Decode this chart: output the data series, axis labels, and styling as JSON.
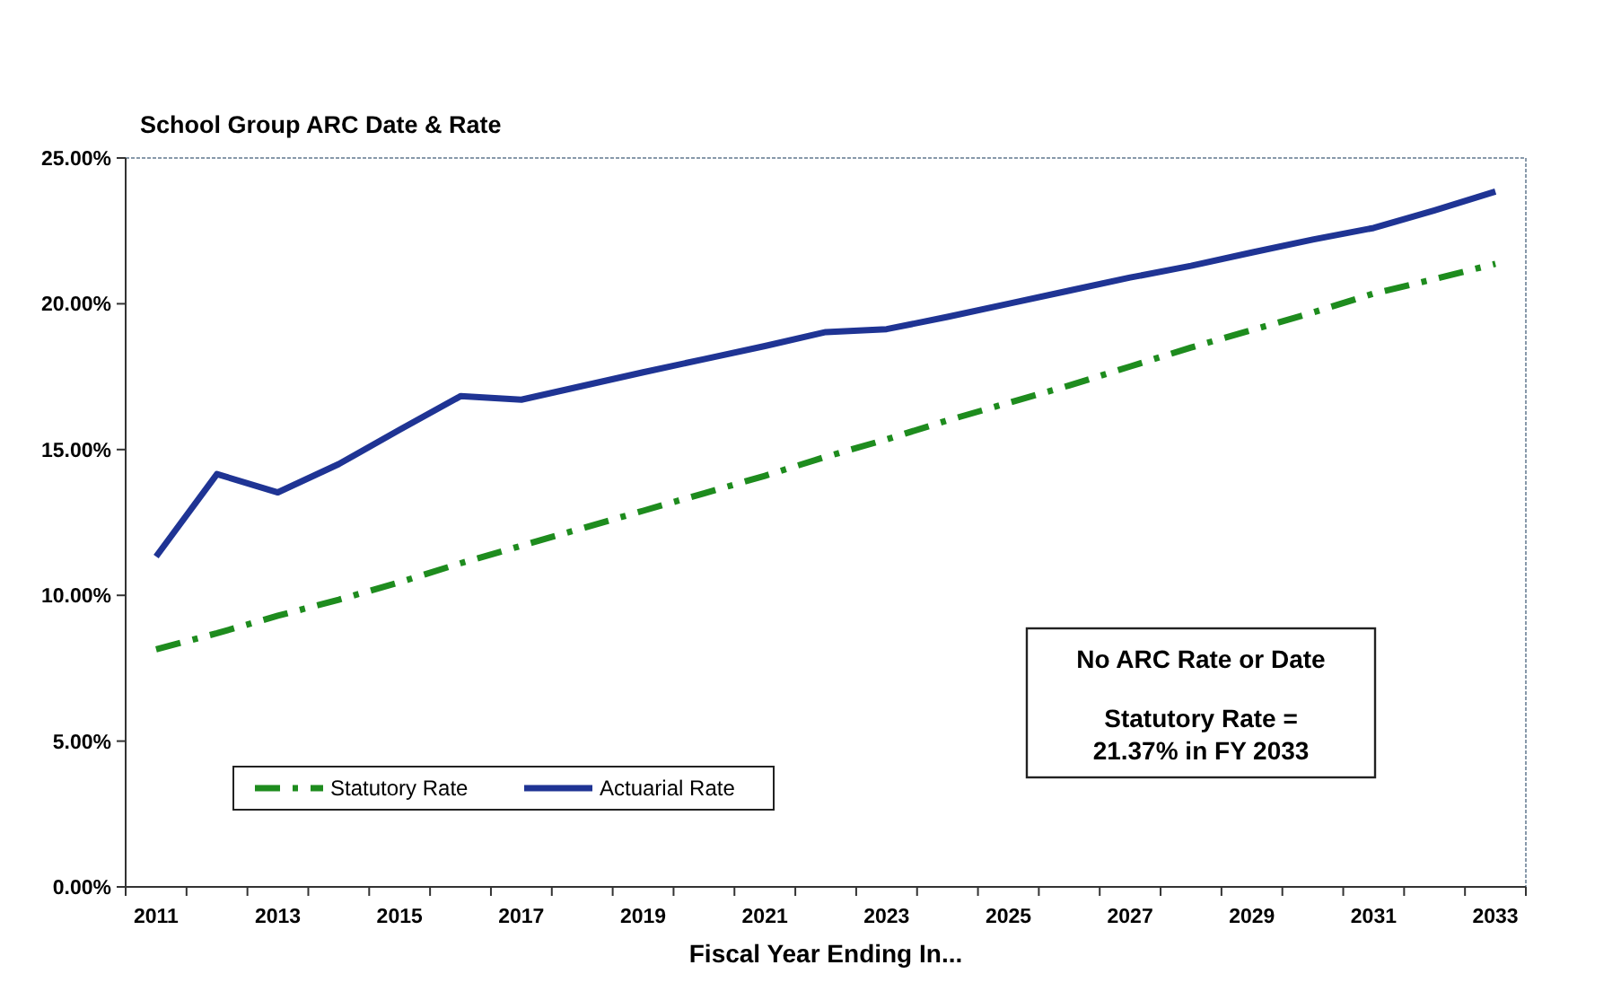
{
  "chart_data": {
    "type": "line",
    "title": "School Group ARC Date & Rate",
    "xlabel": "Fiscal Year Ending In...",
    "categories": [
      "2011",
      null,
      "2013",
      null,
      "2015",
      null,
      "2017",
      null,
      "2019",
      null,
      "2021",
      null,
      "2023",
      null,
      "2025",
      null,
      "2027",
      null,
      "2029",
      null,
      "2031",
      null,
      "2033"
    ],
    "series": [
      {
        "name": "Statutory Rate",
        "color": "#1e8c1e",
        "line_style": "dashed",
        "values": [
          8.15,
          8.7,
          9.3,
          9.85,
          10.45,
          11.1,
          11.7,
          12.3,
          12.9,
          13.5,
          14.1,
          14.75,
          15.35,
          16.0,
          16.6,
          17.2,
          17.85,
          18.5,
          19.1,
          19.7,
          20.35,
          20.85,
          21.37
        ]
      },
      {
        "name": "Actuarial Rate",
        "color": "#1f3494",
        "line_style": "solid",
        "values": [
          11.33,
          14.16,
          13.53,
          14.5,
          15.68,
          16.83,
          16.71,
          17.18,
          17.65,
          18.1,
          18.55,
          19.03,
          19.13,
          19.55,
          20.0,
          20.45,
          20.9,
          21.3,
          21.76,
          22.2,
          22.6,
          23.2,
          23.85
        ]
      }
    ],
    "ylim": [
      0,
      25
    ],
    "yticks": [
      {
        "value": 0,
        "label": "0.00%"
      },
      {
        "value": 5,
        "label": "5.00%"
      },
      {
        "value": 10,
        "label": "10.00%"
      },
      {
        "value": 15,
        "label": "15.00%"
      },
      {
        "value": 20,
        "label": "20.00%"
      },
      {
        "value": 25,
        "label": "25.00%"
      }
    ],
    "grid": false,
    "legend": "bottom left",
    "marker": "none",
    "annotations": [
      "No ARC Rate or Date",
      "Statutory Rate =\n21.37% in FY 2033"
    ]
  }
}
